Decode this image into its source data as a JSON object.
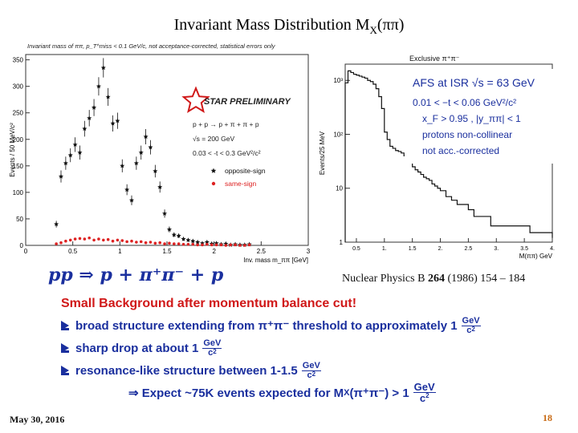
{
  "slide": {
    "title_main": "Invariant Mass Distribution M",
    "title_sub": "X",
    "title_tail": "(ππ)",
    "formula": "pp ⇒ p + π⁺π⁻ + p",
    "reference": {
      "text_before": "Nuclear Physics B ",
      "volume": "264",
      "text_after": " (1986) 154 – 184"
    },
    "heading": "Small Background after momentum  balance cut!",
    "bullets": [
      {
        "text": "broad structure extending from π⁺π⁻  threshold to approximately 1",
        "unit_num": "GeV",
        "unit_den": "c",
        "unit_den_sup": "2"
      },
      {
        "text": "sharp drop at about 1",
        "unit_num": "GeV",
        "unit_den": "c",
        "unit_den_sup": "2"
      },
      {
        "text": "resonance-like structure between 1-1.5",
        "unit_num": "GeV",
        "unit_den": "c",
        "unit_den_sup": "2"
      }
    ],
    "conclusion": {
      "prefix": "⇒  Expect ~75K events expected for M",
      "sub": "X",
      "mid": "(π⁺π⁻) > 1",
      "unit_num": "GeV",
      "unit_den": "c",
      "unit_den_sup": "2"
    },
    "footer_date": "May 30, 2016",
    "slide_number": "18"
  },
  "chart_data": [
    {
      "type": "scatter",
      "title": "Invariant mass of ππ,  p_T^miss < 0.1 GeV/c,  not acceptance-corrected,  statistical errors only",
      "xlabel": "Inv. mass m_ππ [GeV]",
      "ylabel": "Events / 50 MeV/c²",
      "xlim": [
        0,
        3
      ],
      "ylim": [
        0,
        360
      ],
      "xticks": [
        "0",
        "0.5",
        "1",
        "1.5",
        "2",
        "2.5",
        "3"
      ],
      "yticks": [
        "0",
        "50",
        "100",
        "150",
        "200",
        "250",
        "300",
        "350"
      ],
      "annotation_logo": "STAR PRELIMINARY",
      "annotation_lines": [
        "p + p → p + π + π + p",
        "√s = 200 GeV",
        "0.03 < -t < 0.3 GeV²/c²"
      ],
      "legend": [
        "opposite-sign",
        "same-sign"
      ],
      "legend_placement": "center-right",
      "colors": {
        "opposite": "#111111",
        "same": "#dd2222"
      },
      "series": [
        {
          "name": "opposite-sign",
          "x": [
            0.325,
            0.375,
            0.425,
            0.475,
            0.525,
            0.575,
            0.625,
            0.675,
            0.725,
            0.775,
            0.825,
            0.875,
            0.925,
            0.975,
            1.025,
            1.075,
            1.125,
            1.175,
            1.225,
            1.275,
            1.325,
            1.375,
            1.425,
            1.475,
            1.525,
            1.575,
            1.625,
            1.675,
            1.725,
            1.775,
            1.825,
            1.875,
            1.925,
            1.975,
            2.025,
            2.075,
            2.125,
            2.175,
            2.225,
            2.275,
            2.325,
            2.375
          ],
          "y": [
            40,
            130,
            155,
            170,
            190,
            175,
            220,
            240,
            260,
            300,
            335,
            280,
            230,
            235,
            150,
            105,
            85,
            155,
            175,
            205,
            185,
            140,
            110,
            60,
            30,
            20,
            18,
            12,
            10,
            8,
            6,
            4,
            6,
            3,
            4,
            2,
            3,
            1,
            2,
            1,
            1,
            2
          ]
        },
        {
          "name": "same-sign",
          "x": [
            0.325,
            0.375,
            0.425,
            0.475,
            0.525,
            0.575,
            0.625,
            0.675,
            0.725,
            0.775,
            0.825,
            0.875,
            0.925,
            0.975,
            1.025,
            1.075,
            1.125,
            1.175,
            1.225,
            1.275,
            1.325,
            1.375,
            1.425,
            1.475,
            1.525,
            1.575,
            1.625,
            1.675,
            1.725,
            1.775,
            1.825,
            1.875,
            1.925,
            1.975,
            2.025,
            2.075,
            2.125,
            2.175,
            2.225,
            2.275,
            2.325,
            2.375
          ],
          "y": [
            3,
            5,
            8,
            10,
            12,
            13,
            12,
            14,
            10,
            12,
            10,
            11,
            8,
            10,
            9,
            7,
            8,
            6,
            7,
            5,
            6,
            4,
            5,
            3,
            4,
            3,
            3,
            2,
            2,
            2,
            1,
            1,
            2,
            1,
            1,
            1,
            0,
            1,
            1,
            0,
            0,
            1
          ]
        }
      ]
    },
    {
      "type": "line",
      "title": "Exclusive π⁺π⁻",
      "xlabel": "M(ππ)   GeV",
      "ylabel": "Events/25 MeV",
      "yscale": "log",
      "xlim": [
        0.3,
        4.0
      ],
      "ylim": [
        1,
        2000
      ],
      "xticks": [
        "0.5",
        "1.",
        "1.5",
        "2.",
        "2.5",
        "3.",
        "3.5",
        "4."
      ],
      "yticks": [
        "1",
        "10",
        "10²",
        "10³"
      ],
      "annotation_lines": [
        "AFS at ISR √s = 63 GeV",
        "0.01 < −t < 0.06  GeV²/c²",
        "x_F > 0.95 ,  |y_ππ| < 1",
        "protons non-collinear",
        "not acc.-corrected"
      ],
      "series": [
        {
          "name": "",
          "x": [
            0.3,
            0.35,
            0.4,
            0.45,
            0.5,
            0.55,
            0.6,
            0.65,
            0.7,
            0.75,
            0.8,
            0.85,
            0.9,
            0.95,
            1.0,
            1.05,
            1.1,
            1.15,
            1.2,
            1.25,
            1.3,
            1.35,
            1.4,
            1.45,
            1.5,
            1.55,
            1.6,
            1.65,
            1.7,
            1.75,
            1.8,
            1.85,
            1.9,
            1.95,
            2.0,
            2.1,
            2.2,
            2.3,
            2.4,
            2.5,
            2.6,
            2.7,
            2.8,
            2.9,
            3.0,
            3.2,
            3.4,
            3.6,
            3.8,
            4.0
          ],
          "y": [
            900,
            1500,
            1400,
            1300,
            1250,
            1200,
            1150,
            1100,
            1000,
            950,
            850,
            700,
            500,
            300,
            110,
            80,
            60,
            55,
            50,
            48,
            45,
            40,
            38,
            35,
            25,
            22,
            20,
            18,
            16,
            15,
            14,
            12,
            11,
            10,
            9,
            7,
            6,
            5,
            5,
            4,
            3,
            3,
            3,
            2,
            2,
            2,
            2,
            1.5,
            1.5,
            1.2
          ]
        }
      ]
    }
  ]
}
